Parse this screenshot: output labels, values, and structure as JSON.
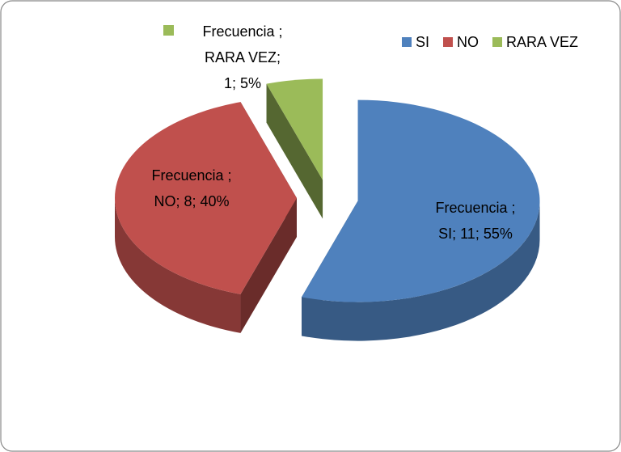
{
  "chart_data": {
    "type": "pie3d",
    "series_name": "Frecuencia ",
    "categories": [
      "SI",
      "NO",
      "RARA VEZ"
    ],
    "values": [
      11,
      8,
      1
    ],
    "percentages": [
      55,
      40,
      5
    ],
    "value_labels": [
      [
        "Frecuencia ;",
        "SI; 11; 55%"
      ],
      [
        "Frecuencia ;",
        "NO; 8; 40%"
      ],
      [
        "Frecuencia ;",
        "RARA VEZ;",
        "1; 5%"
      ]
    ],
    "colors": [
      "#4f81bd",
      "#c0504d",
      "#9bbb59"
    ],
    "exploded": true,
    "legend": "top-right"
  }
}
